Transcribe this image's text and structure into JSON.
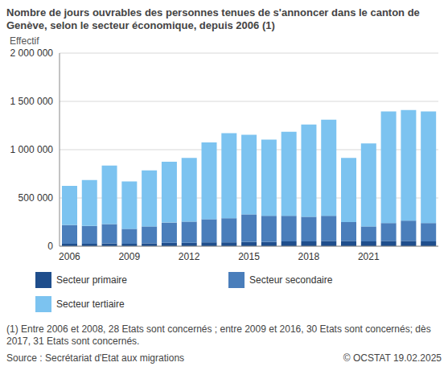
{
  "chart_data": {
    "type": "bar",
    "title": "Nombre de jours ouvrables des personnes tenues de s'annoncer dans le canton de Genève, selon le secteur économique, depuis 2006 (1)",
    "y_label": "Effectif",
    "categories": [
      "2006",
      null,
      null,
      "2009",
      null,
      null,
      "2012",
      null,
      null,
      "2015",
      null,
      null,
      "2018",
      null,
      null,
      "2021",
      null,
      null,
      null
    ],
    "series": [
      {
        "name": "Secteur primaire",
        "color": "#1f4e8c",
        "values": [
          25000,
          25000,
          30000,
          25000,
          30000,
          35000,
          35000,
          40000,
          40000,
          45000,
          45000,
          50000,
          50000,
          55000,
          55000,
          50000,
          55000,
          55000,
          50000
        ]
      },
      {
        "name": "Secteur secondaire",
        "color": "#4a7ebb",
        "values": [
          195000,
          185000,
          200000,
          155000,
          175000,
          210000,
          220000,
          240000,
          250000,
          285000,
          270000,
          265000,
          255000,
          260000,
          195000,
          155000,
          185000,
          210000,
          190000
        ]
      },
      {
        "name": "Secteur tertiaire",
        "color": "#7cc3f0",
        "values": [
          405000,
          475000,
          605000,
          490000,
          580000,
          630000,
          660000,
          795000,
          880000,
          825000,
          790000,
          870000,
          955000,
          995000,
          665000,
          860000,
          1155000,
          1145000,
          1155000
        ]
      }
    ],
    "stacked": true,
    "grid": true,
    "ylim": [
      0,
      2000000
    ],
    "yticks": [
      0,
      {
        "value": 500000,
        "label": "500 000"
      },
      {
        "value": 1000000,
        "label": "1 000 000"
      },
      {
        "value": 1500000,
        "label": "1 500 000"
      },
      {
        "value": 2000000,
        "label": "2 000 000"
      }
    ],
    "footnote": "(1) Entre 2006 et 2008, 28 Etats sont concernés ; entre 2009 et 2016, 30 Etats sont concernés; dès 2017, 31 Etats sont concernés.",
    "source": "Source : Secrétariat d'Etat aux migrations",
    "credit": "© OCSTAT 19.02.2025"
  }
}
